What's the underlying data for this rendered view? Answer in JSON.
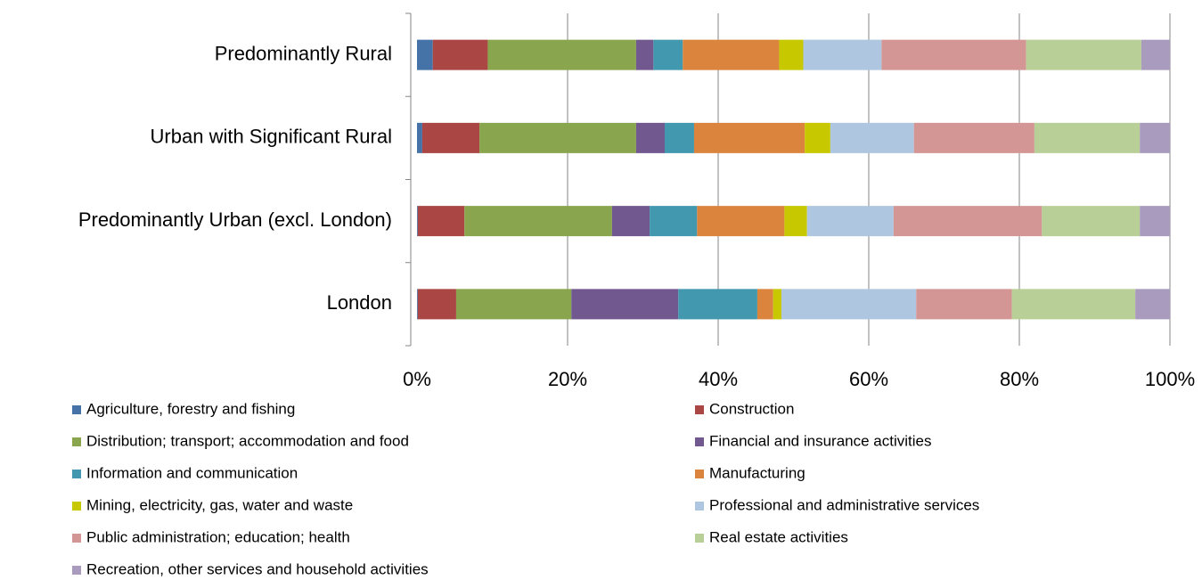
{
  "chart_data": {
    "type": "stacked_barh",
    "categories": [
      "Predominantly Rural",
      "Urban with Significant Rural",
      "Predominantly Urban (excl. London)",
      "London"
    ],
    "series": [
      {
        "name": "Agriculture, forestry and fishing",
        "color": "#4572a7",
        "values": [
          2.1,
          0.7,
          0.1,
          0.1
        ]
      },
      {
        "name": "Construction",
        "color": "#aa4643",
        "values": [
          7.3,
          7.6,
          6.2,
          5.1
        ]
      },
      {
        "name": "Distribution; transport; accommodation and food",
        "color": "#89a54e",
        "values": [
          19.7,
          20.8,
          19.6,
          15.3
        ]
      },
      {
        "name": "Financial and insurance activities",
        "color": "#71588f",
        "values": [
          2.3,
          3.8,
          5.0,
          14.2
        ]
      },
      {
        "name": "Information and communication",
        "color": "#4198af",
        "values": [
          3.9,
          3.9,
          6.3,
          10.5
        ]
      },
      {
        "name": "Manufacturing",
        "color": "#db843d",
        "values": [
          12.8,
          14.7,
          11.6,
          2.1
        ]
      },
      {
        "name": "Mining, electricity, gas, water and waste",
        "color": "#c8c800",
        "values": [
          3.2,
          3.4,
          3.0,
          1.1
        ]
      },
      {
        "name": "Professional and administrative services",
        "color": "#afc6e0",
        "values": [
          10.4,
          11.1,
          11.5,
          17.9
        ]
      },
      {
        "name": "Public administration; education; health",
        "color": "#d49694",
        "values": [
          19.2,
          16.0,
          19.7,
          12.7
        ]
      },
      {
        "name": "Real estate activities",
        "color": "#b9cf98",
        "values": [
          15.3,
          14.0,
          13.0,
          16.4
        ]
      },
      {
        "name": "Recreation, other services and household activities",
        "color": "#a99bbd",
        "values": [
          3.8,
          4.0,
          4.0,
          4.6
        ]
      }
    ],
    "xlim": [
      0,
      100
    ],
    "xticks": [
      {
        "value": 0,
        "label": "0%"
      },
      {
        "value": 20,
        "label": "20%"
      },
      {
        "value": 40,
        "label": "40%"
      },
      {
        "value": 60,
        "label": "60%"
      },
      {
        "value": 80,
        "label": "80%"
      },
      {
        "value": 100,
        "label": "100%"
      }
    ],
    "grid": true,
    "legend": "bottom"
  }
}
